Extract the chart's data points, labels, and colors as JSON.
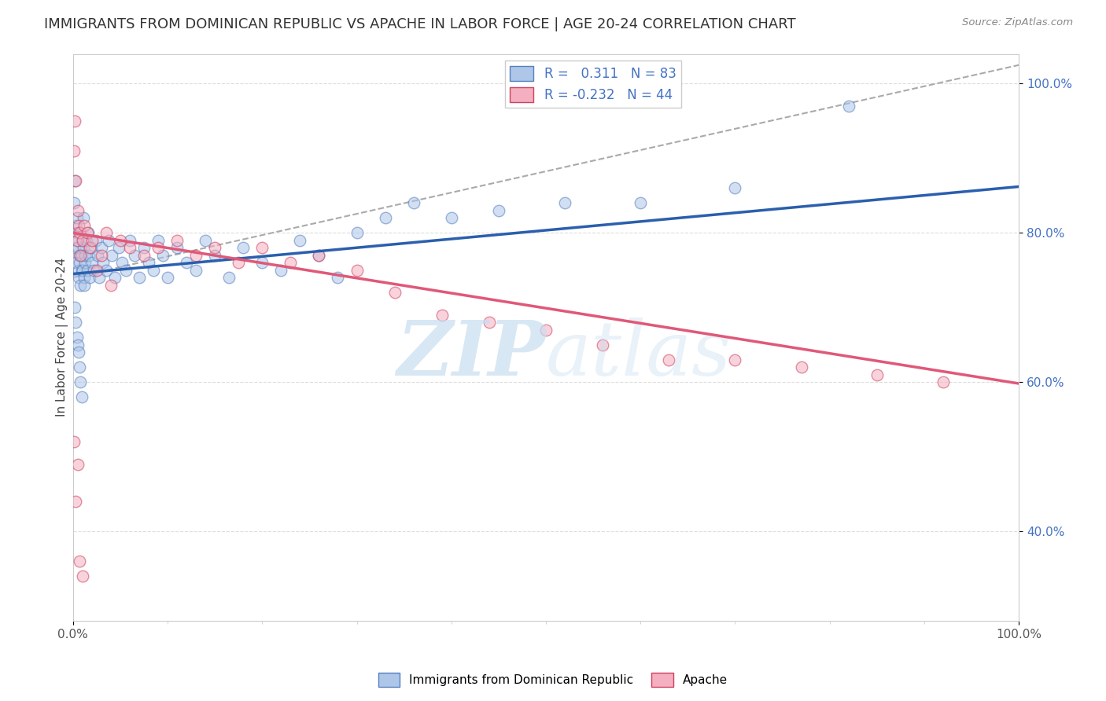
{
  "title": "IMMIGRANTS FROM DOMINICAN REPUBLIC VS APACHE IN LABOR FORCE | AGE 20-24 CORRELATION CHART",
  "source": "Source: ZipAtlas.com",
  "ylabel": "In Labor Force | Age 20-24",
  "xmin": 0.0,
  "xmax": 1.0,
  "ymin": 0.28,
  "ymax": 1.04,
  "blue_R": 0.311,
  "blue_N": 83,
  "pink_R": -0.232,
  "pink_N": 44,
  "blue_color": "#aec6e8",
  "pink_color": "#f4afc0",
  "blue_line_color": "#2b5fad",
  "pink_line_color": "#e05878",
  "dashed_line_color": "#aaaaaa",
  "watermark_color": "#c8ddf0",
  "legend_label_blue": "Immigrants from Dominican Republic",
  "legend_label_pink": "Apache",
  "blue_scatter_edgecolor": "#5580c0",
  "pink_scatter_edgecolor": "#d04060",
  "blue_trend_y0": 0.745,
  "blue_trend_y1": 0.862,
  "pink_trend_y0": 0.8,
  "pink_trend_y1": 0.598,
  "dashed_trend_y0": 0.74,
  "dashed_trend_y1": 1.025,
  "dashed_trend_x0": 0.0,
  "dashed_trend_x1": 1.0,
  "ytick_values": [
    0.4,
    0.6,
    0.8,
    1.0
  ],
  "ytick_labels": [
    "40.0%",
    "60.0%",
    "80.0%",
    "100.0%"
  ],
  "xtick_values": [
    0.0,
    1.0
  ],
  "xtick_labels": [
    "0.0%",
    "100.0%"
  ],
  "background_color": "#ffffff",
  "grid_color": "#dddddd",
  "title_fontsize": 13,
  "ylabel_fontsize": 11,
  "tick_fontsize": 11,
  "scatter_size": 110,
  "scatter_alpha": 0.55,
  "scatter_linewidth": 1.0,
  "blue_scatter_x": [
    0.002,
    0.001,
    0.003,
    0.002,
    0.004,
    0.003,
    0.005,
    0.004,
    0.006,
    0.005,
    0.007,
    0.006,
    0.008,
    0.007,
    0.009,
    0.008,
    0.01,
    0.009,
    0.011,
    0.01,
    0.012,
    0.011,
    0.013,
    0.012,
    0.014,
    0.013,
    0.015,
    0.016,
    0.017,
    0.018,
    0.019,
    0.02,
    0.022,
    0.024,
    0.026,
    0.028,
    0.03,
    0.032,
    0.035,
    0.038,
    0.041,
    0.044,
    0.048,
    0.052,
    0.056,
    0.06,
    0.065,
    0.07,
    0.075,
    0.08,
    0.085,
    0.09,
    0.095,
    0.1,
    0.11,
    0.12,
    0.13,
    0.14,
    0.15,
    0.165,
    0.18,
    0.2,
    0.22,
    0.24,
    0.26,
    0.28,
    0.3,
    0.33,
    0.36,
    0.4,
    0.45,
    0.52,
    0.6,
    0.7,
    0.82,
    0.002,
    0.003,
    0.004,
    0.005,
    0.006,
    0.007,
    0.008,
    0.009
  ],
  "blue_scatter_y": [
    0.87,
    0.84,
    0.81,
    0.78,
    0.8,
    0.76,
    0.79,
    0.82,
    0.75,
    0.78,
    0.77,
    0.74,
    0.8,
    0.76,
    0.75,
    0.73,
    0.79,
    0.77,
    0.82,
    0.75,
    0.74,
    0.78,
    0.76,
    0.73,
    0.79,
    0.77,
    0.75,
    0.8,
    0.77,
    0.74,
    0.78,
    0.76,
    0.75,
    0.79,
    0.77,
    0.74,
    0.78,
    0.76,
    0.75,
    0.79,
    0.77,
    0.74,
    0.78,
    0.76,
    0.75,
    0.79,
    0.77,
    0.74,
    0.78,
    0.76,
    0.75,
    0.79,
    0.77,
    0.74,
    0.78,
    0.76,
    0.75,
    0.79,
    0.77,
    0.74,
    0.78,
    0.76,
    0.75,
    0.79,
    0.77,
    0.74,
    0.8,
    0.82,
    0.84,
    0.82,
    0.83,
    0.84,
    0.84,
    0.86,
    0.97,
    0.7,
    0.68,
    0.66,
    0.65,
    0.64,
    0.62,
    0.6,
    0.58
  ],
  "pink_scatter_x": [
    0.001,
    0.002,
    0.003,
    0.004,
    0.005,
    0.006,
    0.007,
    0.008,
    0.01,
    0.012,
    0.015,
    0.018,
    0.02,
    0.025,
    0.03,
    0.035,
    0.04,
    0.05,
    0.06,
    0.075,
    0.09,
    0.11,
    0.13,
    0.15,
    0.175,
    0.2,
    0.23,
    0.26,
    0.3,
    0.34,
    0.39,
    0.44,
    0.5,
    0.56,
    0.63,
    0.7,
    0.77,
    0.85,
    0.92,
    0.001,
    0.003,
    0.005,
    0.007,
    0.01
  ],
  "pink_scatter_y": [
    0.91,
    0.95,
    0.87,
    0.79,
    0.83,
    0.81,
    0.8,
    0.77,
    0.79,
    0.81,
    0.8,
    0.78,
    0.79,
    0.75,
    0.77,
    0.8,
    0.73,
    0.79,
    0.78,
    0.77,
    0.78,
    0.79,
    0.77,
    0.78,
    0.76,
    0.78,
    0.76,
    0.77,
    0.75,
    0.72,
    0.69,
    0.68,
    0.67,
    0.65,
    0.63,
    0.63,
    0.62,
    0.61,
    0.6,
    0.52,
    0.44,
    0.49,
    0.36,
    0.34
  ]
}
